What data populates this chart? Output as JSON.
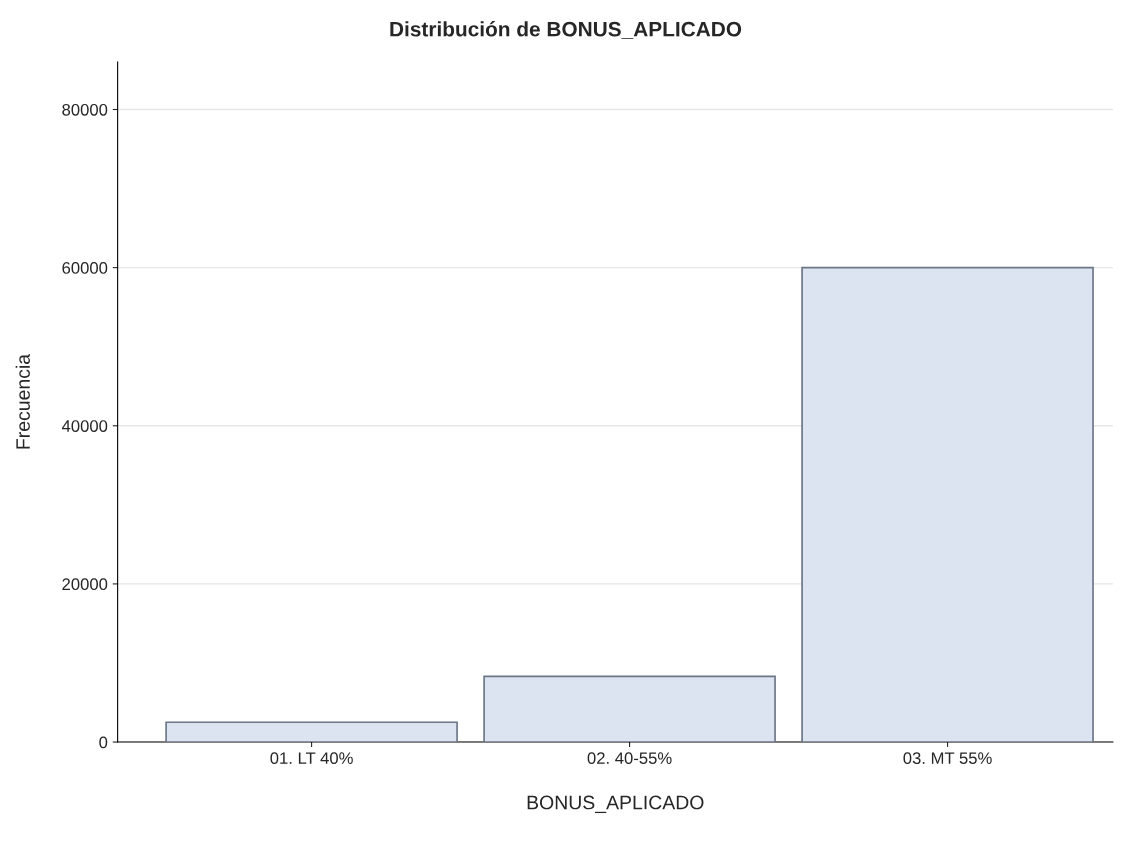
{
  "chart_data": {
    "type": "bar",
    "title": "Distribución de BONUS_APLICADO",
    "xlabel": "BONUS_APLICADO",
    "ylabel": "Frecuencia",
    "categories": [
      "01. LT 40%",
      "02. 40-55%",
      "03. MT 55%"
    ],
    "values": [
      2500,
      8300,
      60000
    ],
    "color": "#dce4f1",
    "ylim": [
      0,
      86000
    ],
    "yticks": [
      0,
      20000,
      40000,
      60000,
      80000
    ],
    "grid": "y"
  }
}
